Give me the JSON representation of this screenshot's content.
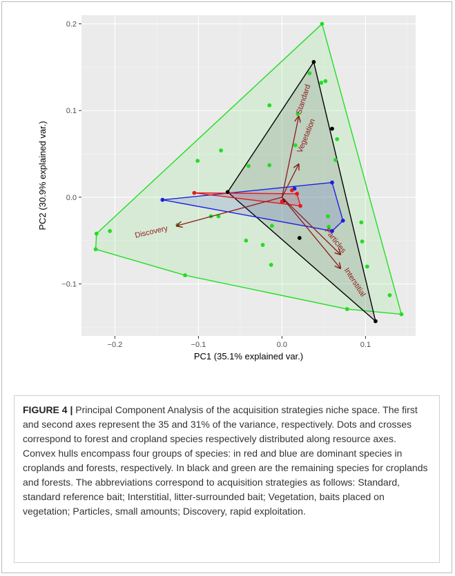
{
  "figure": {
    "label": "FIGURE 4 |",
    "caption": "Principal Component Analysis of the acquisition strategies niche space. The first and second axes represent the 35 and 31% of the variance, respectively. Dots and crosses correspond to forest and cropland species respectively distributed along resource axes. Convex hulls encompass four groups of species: in red and blue are dominant species in croplands and forests, respectively. In black and green are the remaining species for croplands and forests. The abbreviations correspond to acquisition strategies as follows: Standard, standard reference bait; Interstitial, litter-surrounded bait; Vegetation, baits placed on vegetation; Particles, small amounts; Discovery, rapid exploitation."
  },
  "colors": {
    "panel": "#ebebeb",
    "grid_major": "#ffffff",
    "red": "#e41a1c",
    "blue": "#1f1fdd",
    "black": "#000000",
    "green": "#22dd22",
    "arrow": "#8b1a1a"
  },
  "chart_data": {
    "type": "scatter",
    "xlabel": "PC1 (35.1% explained var.)",
    "ylabel": "PC2 (30.9% explained var.)",
    "xlim": [
      -0.24,
      0.16
    ],
    "ylim": [
      -0.16,
      0.21
    ],
    "xticks": [
      -0.2,
      -0.1,
      0.0,
      0.1
    ],
    "xtick_labels": [
      "−0.2",
      "−0.1",
      "0.0",
      "0.1"
    ],
    "yticks": [
      -0.1,
      0.0,
      0.1,
      0.2
    ],
    "ytick_labels": [
      "−0.1",
      "0.0",
      "0.1",
      "0.2"
    ],
    "groups": [
      {
        "color": "green",
        "points": [
          [
            0.048,
            0.2
          ],
          [
            -0.222,
            -0.042
          ],
          [
            -0.206,
            -0.039
          ],
          [
            -0.223,
            -0.06
          ],
          [
            -0.116,
            -0.09
          ],
          [
            0.078,
            -0.129
          ],
          [
            0.143,
            -0.135
          ],
          [
            0.129,
            -0.113
          ],
          [
            0.102,
            -0.08
          ],
          [
            0.096,
            -0.051
          ],
          [
            0.095,
            -0.029
          ],
          [
            0.055,
            -0.022
          ],
          [
            0.056,
            -0.034
          ],
          [
            -0.043,
            -0.05
          ],
          [
            -0.023,
            -0.055
          ],
          [
            -0.013,
            -0.078
          ],
          [
            -0.012,
            -0.033
          ],
          [
            -0.085,
            -0.022
          ],
          [
            -0.076,
            -0.022
          ],
          [
            -0.125,
            -0.032
          ],
          [
            -0.101,
            0.042
          ],
          [
            -0.073,
            0.054
          ],
          [
            -0.04,
            0.036
          ],
          [
            -0.015,
            0.106
          ],
          [
            -0.015,
            0.037
          ],
          [
            0.016,
            0.06
          ],
          [
            0.019,
            0.096
          ],
          [
            0.033,
            0.143
          ],
          [
            0.047,
            0.132
          ],
          [
            0.052,
            0.134
          ],
          [
            0.066,
            0.067
          ],
          [
            0.064,
            0.043
          ]
        ],
        "hull": [
          [
            0.048,
            0.2
          ],
          [
            0.143,
            -0.135
          ],
          [
            0.078,
            -0.129
          ],
          [
            -0.116,
            -0.09
          ],
          [
            -0.223,
            -0.06
          ],
          [
            -0.222,
            -0.042
          ]
        ]
      },
      {
        "color": "black",
        "points": [
          [
            0.038,
            0.156
          ],
          [
            0.06,
            0.079
          ],
          [
            -0.065,
            0.006
          ],
          [
            0.002,
            -0.004
          ],
          [
            0.021,
            -0.047
          ],
          [
            0.112,
            -0.143
          ]
        ],
        "hull": [
          [
            0.038,
            0.156
          ],
          [
            0.112,
            -0.143
          ],
          [
            -0.065,
            0.006
          ]
        ]
      },
      {
        "color": "blue",
        "points": [
          [
            -0.143,
            -0.003
          ],
          [
            0.06,
            0.017
          ],
          [
            0.073,
            -0.027
          ],
          [
            0.06,
            -0.039
          ],
          [
            0.015,
            0.01
          ]
        ],
        "hull": [
          [
            -0.143,
            -0.003
          ],
          [
            0.06,
            0.017
          ],
          [
            0.073,
            -0.027
          ],
          [
            0.06,
            -0.039
          ]
        ]
      },
      {
        "color": "red",
        "points": [
          [
            -0.105,
            0.005
          ],
          [
            0.012,
            0.008
          ],
          [
            0.018,
            0.004
          ],
          [
            0.022,
            -0.01
          ],
          [
            0.0,
            -0.005
          ]
        ],
        "hull": [
          [
            -0.105,
            0.005
          ],
          [
            0.018,
            0.004
          ],
          [
            0.022,
            -0.01
          ]
        ]
      }
    ],
    "vectors": [
      {
        "name": "Standard",
        "end": [
          0.02,
          0.093
        ]
      },
      {
        "name": "Vegetation",
        "end": [
          0.02,
          0.038
        ]
      },
      {
        "name": "Particles",
        "end": [
          0.07,
          -0.066
        ]
      },
      {
        "name": "Interstitial",
        "end": [
          0.07,
          -0.082
        ]
      },
      {
        "name": "Discovery",
        "end": [
          -0.126,
          -0.033
        ]
      }
    ]
  }
}
